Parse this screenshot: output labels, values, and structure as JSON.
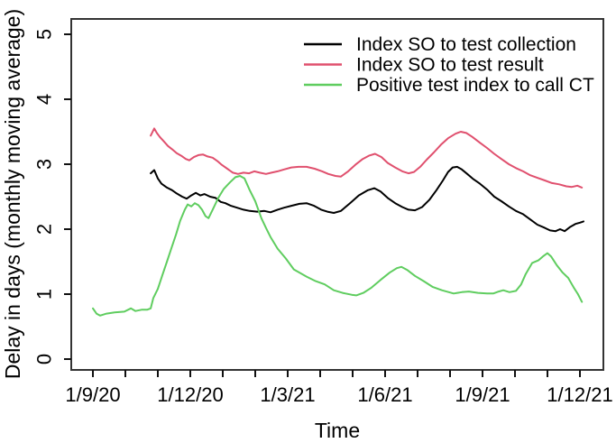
{
  "chart_data": {
    "type": "line",
    "title": "",
    "xlabel": "Time",
    "ylabel": "Delay in days (monthly moving average)",
    "ylim": [
      0,
      5
    ],
    "y_ticks": [
      "0",
      "1",
      "2",
      "3",
      "4",
      "5"
    ],
    "x_axis_note": "monthly minor ticks from Sep 2020 to Dec 2021, labels every 3 months, date format d/m/yy",
    "x_tick_labels": [
      "1/9/20",
      "1/12/20",
      "1/3/21",
      "1/6/21",
      "1/9/21",
      "1/12/21"
    ],
    "x_months_range": [
      0,
      15
    ],
    "grid": "off",
    "legend_position": "top-right-inside",
    "series": [
      {
        "name": "Index SO to test collection",
        "color": "#000000",
        "points": [
          [
            1.78,
            2.86
          ],
          [
            1.89,
            2.91
          ],
          [
            2.0,
            2.78
          ],
          [
            2.11,
            2.7
          ],
          [
            2.28,
            2.64
          ],
          [
            2.44,
            2.6
          ],
          [
            2.58,
            2.55
          ],
          [
            2.75,
            2.5
          ],
          [
            2.89,
            2.47
          ],
          [
            3.03,
            2.52
          ],
          [
            3.17,
            2.56
          ],
          [
            3.31,
            2.52
          ],
          [
            3.44,
            2.54
          ],
          [
            3.61,
            2.5
          ],
          [
            3.78,
            2.48
          ],
          [
            3.94,
            2.42
          ],
          [
            4.08,
            2.4
          ],
          [
            4.25,
            2.36
          ],
          [
            4.44,
            2.33
          ],
          [
            4.64,
            2.3
          ],
          [
            4.83,
            2.28
          ],
          [
            5.06,
            2.27
          ],
          [
            5.28,
            2.28
          ],
          [
            5.47,
            2.26
          ],
          [
            5.69,
            2.3
          ],
          [
            5.89,
            2.33
          ],
          [
            6.11,
            2.36
          ],
          [
            6.36,
            2.39
          ],
          [
            6.58,
            2.4
          ],
          [
            6.81,
            2.36
          ],
          [
            7.03,
            2.3
          ],
          [
            7.22,
            2.27
          ],
          [
            7.42,
            2.25
          ],
          [
            7.64,
            2.28
          ],
          [
            7.92,
            2.4
          ],
          [
            8.19,
            2.52
          ],
          [
            8.47,
            2.6
          ],
          [
            8.67,
            2.63
          ],
          [
            8.86,
            2.58
          ],
          [
            9.08,
            2.48
          ],
          [
            9.31,
            2.4
          ],
          [
            9.53,
            2.34
          ],
          [
            9.72,
            2.3
          ],
          [
            9.92,
            2.29
          ],
          [
            10.14,
            2.34
          ],
          [
            10.36,
            2.45
          ],
          [
            10.58,
            2.6
          ],
          [
            10.78,
            2.75
          ],
          [
            10.94,
            2.88
          ],
          [
            11.08,
            2.95
          ],
          [
            11.22,
            2.96
          ],
          [
            11.36,
            2.92
          ],
          [
            11.53,
            2.85
          ],
          [
            11.72,
            2.77
          ],
          [
            11.92,
            2.7
          ],
          [
            12.14,
            2.61
          ],
          [
            12.36,
            2.5
          ],
          [
            12.58,
            2.43
          ],
          [
            12.81,
            2.35
          ],
          [
            13.03,
            2.28
          ],
          [
            13.25,
            2.23
          ],
          [
            13.47,
            2.15
          ],
          [
            13.69,
            2.07
          ],
          [
            13.92,
            2.02
          ],
          [
            14.08,
            1.98
          ],
          [
            14.25,
            1.97
          ],
          [
            14.39,
            2.0
          ],
          [
            14.53,
            1.97
          ],
          [
            14.69,
            2.03
          ],
          [
            14.86,
            2.08
          ],
          [
            15.0,
            2.1
          ],
          [
            15.11,
            2.12
          ]
        ]
      },
      {
        "name": "Index SO to test result",
        "color": "#e0506e",
        "points": [
          [
            1.78,
            3.44
          ],
          [
            1.89,
            3.55
          ],
          [
            1.97,
            3.48
          ],
          [
            2.06,
            3.42
          ],
          [
            2.17,
            3.36
          ],
          [
            2.31,
            3.28
          ],
          [
            2.44,
            3.23
          ],
          [
            2.58,
            3.17
          ],
          [
            2.72,
            3.13
          ],
          [
            2.86,
            3.08
          ],
          [
            2.97,
            3.06
          ],
          [
            3.11,
            3.11
          ],
          [
            3.25,
            3.14
          ],
          [
            3.39,
            3.15
          ],
          [
            3.53,
            3.12
          ],
          [
            3.69,
            3.1
          ],
          [
            3.83,
            3.05
          ],
          [
            3.97,
            2.99
          ],
          [
            4.14,
            2.93
          ],
          [
            4.31,
            2.87
          ],
          [
            4.47,
            2.85
          ],
          [
            4.64,
            2.87
          ],
          [
            4.81,
            2.86
          ],
          [
            4.97,
            2.89
          ],
          [
            5.14,
            2.87
          ],
          [
            5.33,
            2.85
          ],
          [
            5.5,
            2.87
          ],
          [
            5.69,
            2.89
          ],
          [
            5.89,
            2.92
          ],
          [
            6.11,
            2.95
          ],
          [
            6.33,
            2.96
          ],
          [
            6.58,
            2.96
          ],
          [
            6.83,
            2.93
          ],
          [
            7.06,
            2.89
          ],
          [
            7.25,
            2.85
          ],
          [
            7.47,
            2.82
          ],
          [
            7.64,
            2.81
          ],
          [
            7.86,
            2.89
          ],
          [
            8.08,
            2.99
          ],
          [
            8.31,
            3.08
          ],
          [
            8.5,
            3.13
          ],
          [
            8.69,
            3.16
          ],
          [
            8.89,
            3.11
          ],
          [
            9.08,
            3.02
          ],
          [
            9.31,
            2.95
          ],
          [
            9.53,
            2.89
          ],
          [
            9.72,
            2.86
          ],
          [
            9.89,
            2.88
          ],
          [
            10.08,
            2.96
          ],
          [
            10.28,
            3.07
          ],
          [
            10.5,
            3.18
          ],
          [
            10.72,
            3.3
          ],
          [
            10.94,
            3.4
          ],
          [
            11.17,
            3.47
          ],
          [
            11.33,
            3.5
          ],
          [
            11.5,
            3.48
          ],
          [
            11.69,
            3.42
          ],
          [
            11.92,
            3.33
          ],
          [
            12.14,
            3.25
          ],
          [
            12.36,
            3.16
          ],
          [
            12.58,
            3.08
          ],
          [
            12.81,
            3.0
          ],
          [
            13.03,
            2.94
          ],
          [
            13.25,
            2.89
          ],
          [
            13.47,
            2.83
          ],
          [
            13.69,
            2.79
          ],
          [
            13.92,
            2.75
          ],
          [
            14.14,
            2.71
          ],
          [
            14.36,
            2.69
          ],
          [
            14.58,
            2.66
          ],
          [
            14.75,
            2.65
          ],
          [
            14.92,
            2.67
          ],
          [
            15.06,
            2.64
          ]
        ]
      },
      {
        "name": "Positive test index to call CT",
        "color": "#5fcd5f",
        "points": [
          [
            0.0,
            0.78
          ],
          [
            0.11,
            0.7
          ],
          [
            0.22,
            0.67
          ],
          [
            0.42,
            0.7
          ],
          [
            0.67,
            0.72
          ],
          [
            0.97,
            0.73
          ],
          [
            1.17,
            0.78
          ],
          [
            1.31,
            0.74
          ],
          [
            1.5,
            0.76
          ],
          [
            1.67,
            0.76
          ],
          [
            1.78,
            0.78
          ],
          [
            1.86,
            0.94
          ],
          [
            2.0,
            1.08
          ],
          [
            2.14,
            1.29
          ],
          [
            2.28,
            1.5
          ],
          [
            2.42,
            1.71
          ],
          [
            2.56,
            1.92
          ],
          [
            2.69,
            2.13
          ],
          [
            2.83,
            2.3
          ],
          [
            2.92,
            2.38
          ],
          [
            3.03,
            2.35
          ],
          [
            3.14,
            2.4
          ],
          [
            3.25,
            2.37
          ],
          [
            3.36,
            2.3
          ],
          [
            3.47,
            2.2
          ],
          [
            3.56,
            2.17
          ],
          [
            3.69,
            2.3
          ],
          [
            3.86,
            2.48
          ],
          [
            4.03,
            2.62
          ],
          [
            4.22,
            2.72
          ],
          [
            4.39,
            2.8
          ],
          [
            4.53,
            2.82
          ],
          [
            4.67,
            2.78
          ],
          [
            4.83,
            2.6
          ],
          [
            5.0,
            2.43
          ],
          [
            5.19,
            2.17
          ],
          [
            5.33,
            2.02
          ],
          [
            5.47,
            1.88
          ],
          [
            5.69,
            1.7
          ],
          [
            5.94,
            1.55
          ],
          [
            6.19,
            1.38
          ],
          [
            6.58,
            1.27
          ],
          [
            6.86,
            1.2
          ],
          [
            7.14,
            1.15
          ],
          [
            7.42,
            1.06
          ],
          [
            7.69,
            1.02
          ],
          [
            7.97,
            0.99
          ],
          [
            8.11,
            0.98
          ],
          [
            8.33,
            1.02
          ],
          [
            8.58,
            1.1
          ],
          [
            8.86,
            1.22
          ],
          [
            9.14,
            1.33
          ],
          [
            9.36,
            1.4
          ],
          [
            9.5,
            1.42
          ],
          [
            9.69,
            1.37
          ],
          [
            9.92,
            1.28
          ],
          [
            10.19,
            1.2
          ],
          [
            10.47,
            1.11
          ],
          [
            10.75,
            1.06
          ],
          [
            11.11,
            1.01
          ],
          [
            11.36,
            1.03
          ],
          [
            11.58,
            1.04
          ],
          [
            11.86,
            1.02
          ],
          [
            12.14,
            1.01
          ],
          [
            12.33,
            1.01
          ],
          [
            12.5,
            1.04
          ],
          [
            12.64,
            1.06
          ],
          [
            12.83,
            1.03
          ],
          [
            13.03,
            1.05
          ],
          [
            13.19,
            1.15
          ],
          [
            13.33,
            1.31
          ],
          [
            13.53,
            1.48
          ],
          [
            13.72,
            1.52
          ],
          [
            13.86,
            1.58
          ],
          [
            14.0,
            1.63
          ],
          [
            14.11,
            1.58
          ],
          [
            14.28,
            1.45
          ],
          [
            14.47,
            1.33
          ],
          [
            14.64,
            1.25
          ],
          [
            14.81,
            1.1
          ],
          [
            14.94,
            1.0
          ],
          [
            15.06,
            0.88
          ]
        ]
      }
    ]
  }
}
